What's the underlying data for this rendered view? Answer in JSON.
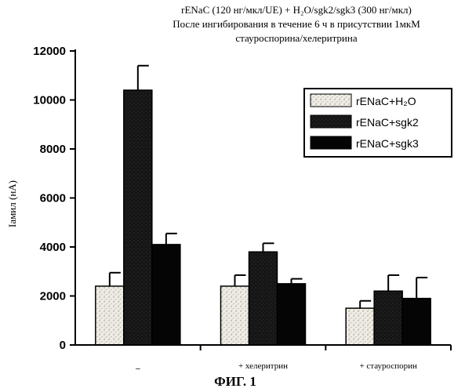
{
  "title_lines": [
    "rENaC (120 нг/мкл/UE) + H₂O/sgk2/sgk3 (300 нг/мкл)",
    "После ингибирования в течение 6 ч в присутствии 1мкМ",
    "стауроспорина/хелеритрина"
  ],
  "figure_caption": "ФИГ. 1",
  "chart_data": {
    "type": "bar",
    "categories": [
      "–",
      "+ хелеритрин",
      "+ стауроспорин"
    ],
    "ylabel": "Iамил (нА)",
    "ylim": [
      0,
      12000
    ],
    "yticks": [
      0,
      2000,
      4000,
      6000,
      8000,
      10000,
      12000
    ],
    "grid": false,
    "legend_position": "top-right",
    "series": [
      {
        "name": "rENaC+H₂O",
        "values": [
          2400,
          2400,
          1500
        ],
        "errors": [
          550,
          450,
          300
        ],
        "color": "#ece8df",
        "pattern": "dots"
      },
      {
        "name": "rENaC+sgk2",
        "values": [
          10400,
          3800,
          2200
        ],
        "errors": [
          1000,
          350,
          650
        ],
        "color": "#141414",
        "pattern": "speckle"
      },
      {
        "name": "rENaC+sgk3",
        "values": [
          4100,
          2500,
          1900
        ],
        "errors": [
          450,
          200,
          850
        ],
        "color": "#050505",
        "pattern": "solid"
      }
    ]
  }
}
